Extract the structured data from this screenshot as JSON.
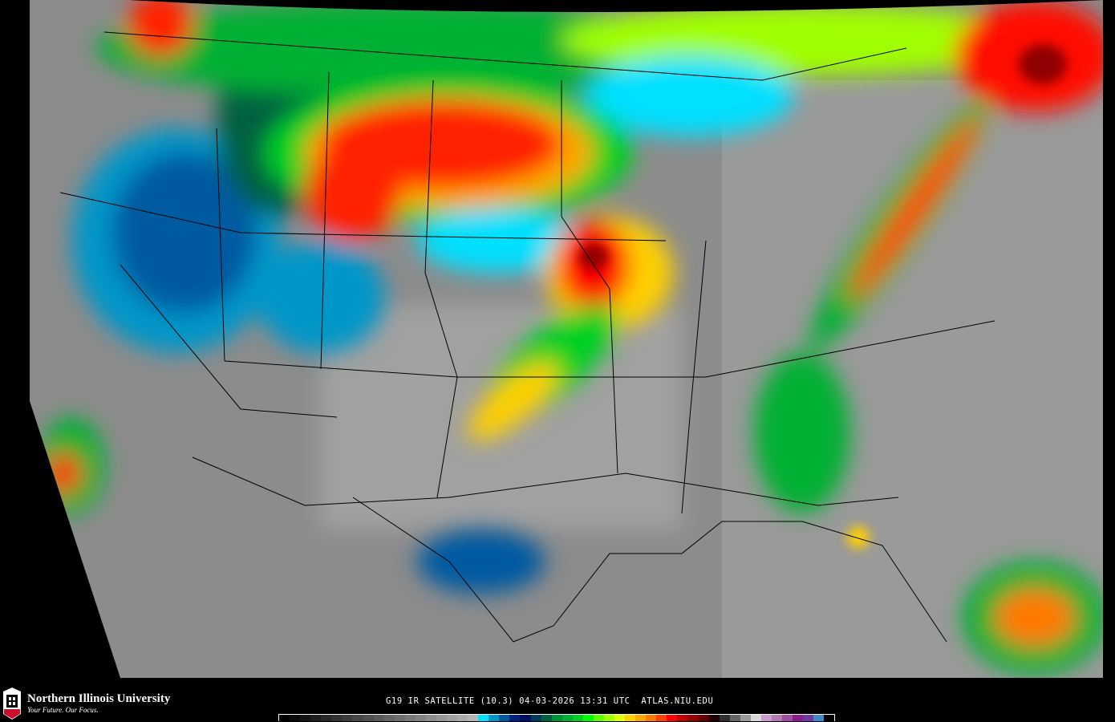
{
  "map": {
    "background_color": "#8c8c8c",
    "state_line_color": "#000000"
  },
  "footer": {
    "university_name": "Northern Illinois University",
    "university_tagline": "Your Future. Our Focus.",
    "logo_text": "NIU",
    "product_title": "G19 IR SATELLITE (10.3) 04-03-2026 13:31 UTC  ATLAS.NIU.EDU"
  },
  "colorbar": {
    "colors": [
      "#000000",
      "#0a0a0a",
      "#141414",
      "#1e1e1e",
      "#282828",
      "#323232",
      "#3c3c3c",
      "#464646",
      "#505050",
      "#5a5a5a",
      "#646464",
      "#6e6e6e",
      "#787878",
      "#828282",
      "#8c8c8c",
      "#969696",
      "#a0a0a0",
      "#aaaaaa",
      "#b4b4b4",
      "#00e0ff",
      "#0096c8",
      "#005aa0",
      "#002080",
      "#001060",
      "#003a5a",
      "#006040",
      "#00903c",
      "#00b030",
      "#00d020",
      "#00ff00",
      "#60ff00",
      "#a0ff00",
      "#e0ff00",
      "#ffd000",
      "#ffa800",
      "#ff7800",
      "#ff4000",
      "#ff0000",
      "#c00000",
      "#900000",
      "#600000",
      "#200000",
      "#303030",
      "#646464",
      "#9a9a9a",
      "#d8d8d8",
      "#cc9ccc",
      "#b478b4",
      "#a04ca0",
      "#8c1c8c",
      "#7038a0",
      "#4088c8",
      "#000000"
    ]
  }
}
